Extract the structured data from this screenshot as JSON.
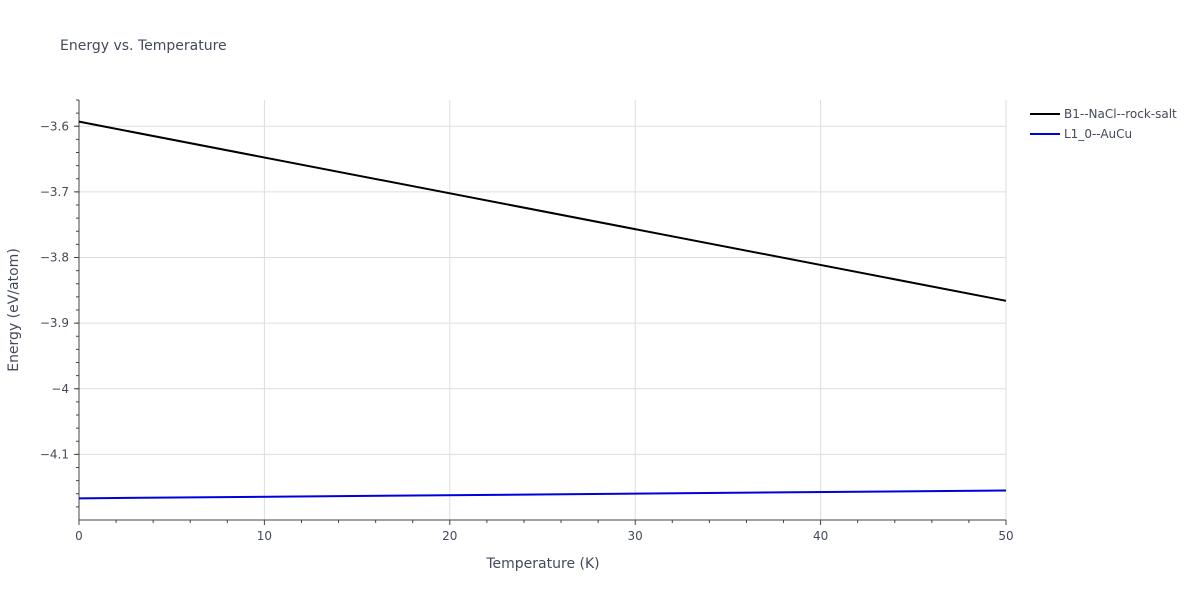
{
  "chart_data": {
    "type": "line",
    "title": "Energy vs. Temperature",
    "xlabel": "Temperature (K)",
    "ylabel": "Energy (eV/atom)",
    "xlim": [
      0,
      50
    ],
    "ylim": [
      -4.2,
      -3.56
    ],
    "x_ticks": [
      0,
      10,
      20,
      30,
      40,
      50
    ],
    "x_tick_labels": [
      "0",
      "10",
      "20",
      "30",
      "40",
      "50"
    ],
    "y_ticks": [
      -3.6,
      -3.7,
      -3.8,
      -3.9,
      -4.0,
      -4.1
    ],
    "y_tick_labels": [
      "−3.6",
      "−3.7",
      "−3.8",
      "−3.9",
      "−4",
      "−4.1"
    ],
    "grid": true,
    "legend_position": "top-right",
    "series": [
      {
        "name": "B1--NaCl--rock-salt",
        "color": "#000000",
        "x": [
          0,
          50
        ],
        "y": [
          -3.593,
          -3.866
        ]
      },
      {
        "name": "L1_0--AuCu",
        "color": "#0000dd",
        "x": [
          0,
          50
        ],
        "y": [
          -4.167,
          -4.155
        ]
      }
    ]
  }
}
